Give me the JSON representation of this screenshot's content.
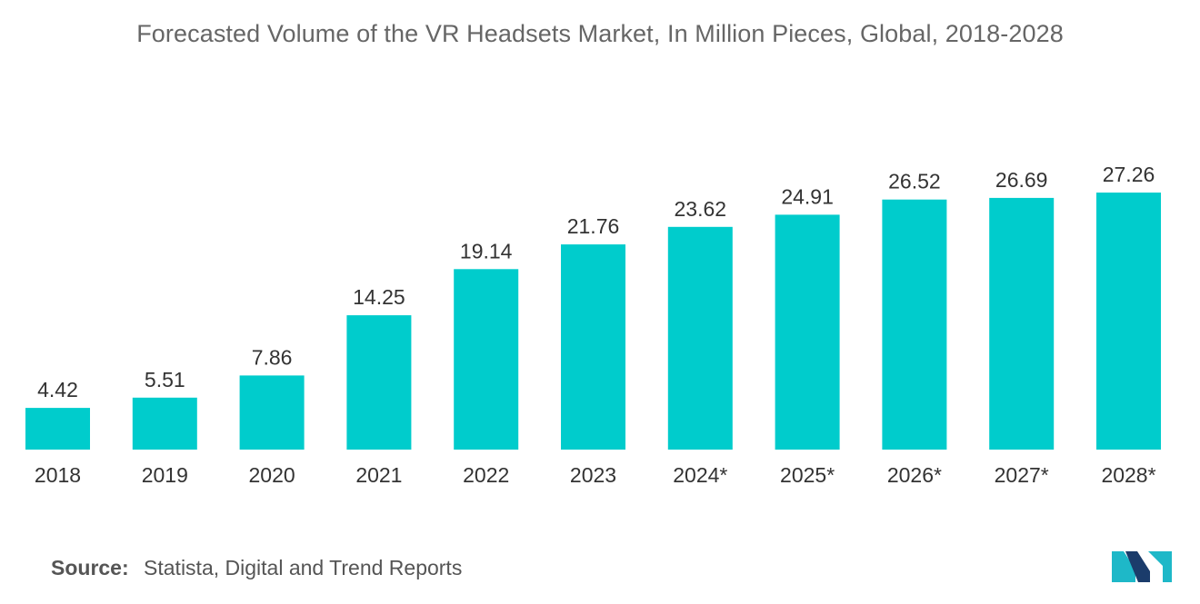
{
  "chart_data": {
    "type": "bar",
    "title": "Forecasted Volume of the VR Headsets Market, In Million Pieces, Global, 2018-2028",
    "categories": [
      "2018",
      "2019",
      "2020",
      "2021",
      "2022",
      "2023",
      "2024*",
      "2025*",
      "2026*",
      "2027*",
      "2028*"
    ],
    "values": [
      4.42,
      5.51,
      7.86,
      14.25,
      19.14,
      21.76,
      23.62,
      24.91,
      26.52,
      26.69,
      27.26
    ],
    "value_labels": [
      "4.42",
      "5.51",
      "7.86",
      "14.25",
      "19.14",
      "21.76",
      "23.62",
      "24.91",
      "26.52",
      "26.69",
      "27.26"
    ],
    "xlabel": "",
    "ylabel": "",
    "ylim": [
      0,
      27.26
    ],
    "grid": false,
    "bar_color": "#00CCCC"
  },
  "source": {
    "label": "Source:",
    "text": "Statista, Digital and Trend Reports"
  },
  "logo": {
    "icon": "mordor-intelligence-logo-icon",
    "colors": [
      "#1B3C6B",
      "#1EB8C8"
    ]
  }
}
